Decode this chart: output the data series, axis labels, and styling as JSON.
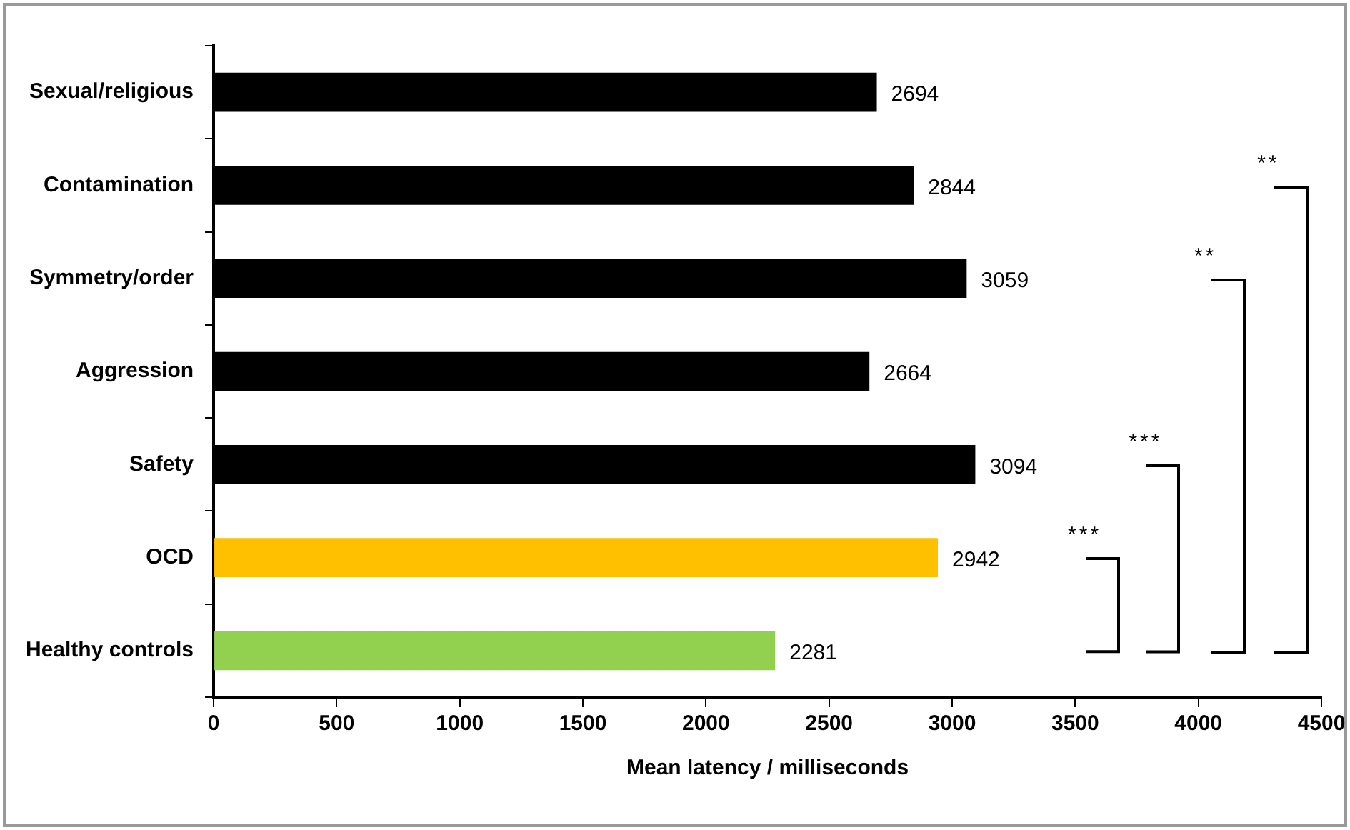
{
  "chart_data": {
    "type": "bar",
    "orientation": "horizontal",
    "xlabel": "Mean latency / milliseconds",
    "categories": [
      "Sexual/religious",
      "Contamination",
      "Symmetry/order",
      "Aggression",
      "Safety",
      "OCD",
      "Healthy controls"
    ],
    "values": [
      2694,
      2844,
      3059,
      2664,
      3094,
      2942,
      2281
    ],
    "colors": [
      "#000000",
      "#000000",
      "#000000",
      "#000000",
      "#000000",
      "#ffc000",
      "#92d050"
    ],
    "xlim": [
      0,
      4500
    ],
    "xticks": [
      0,
      500,
      1000,
      1500,
      2000,
      2500,
      3000,
      3500,
      4000,
      4500
    ],
    "data_labels": true,
    "grid": false,
    "legend": false,
    "annotations": [
      "***",
      "***",
      "**",
      "**"
    ]
  }
}
